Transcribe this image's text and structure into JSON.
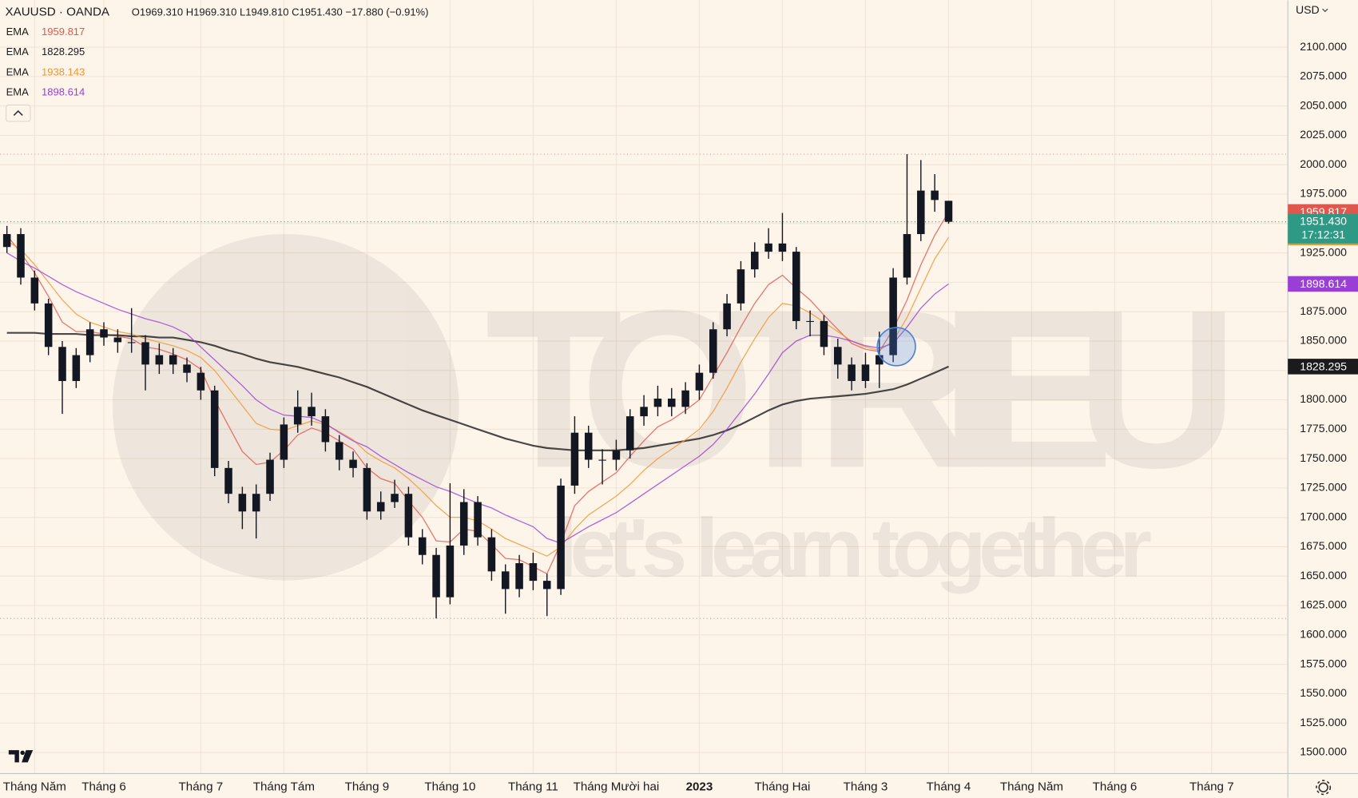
{
  "chart_data": {
    "type": "candlestick",
    "header": {
      "symbol": "XAUUSD · OANDA",
      "ohlc": [
        {
          "k": "O",
          "v": "1969.310"
        },
        {
          "k": "H",
          "v": "1969.310"
        },
        {
          "k": "L",
          "v": "1949.810"
        },
        {
          "k": "C",
          "v": "1951.430"
        }
      ],
      "change": "−17.880 (−0.91%)"
    },
    "currency": "USD",
    "watermark": {
      "brand": "TOTRIEU",
      "slogan": "let's learn together"
    },
    "price_tag": {
      "price": "1951.430",
      "countdown": "17:12:31"
    },
    "candle_color": "#131722",
    "last_color": "#2e9a86",
    "grid": true,
    "ylim": [
      1482,
      2140
    ],
    "yticks": [
      {
        "value": 1500,
        "label": "1500.000"
      },
      {
        "value": 1525,
        "label": "1525.000"
      },
      {
        "value": 1550,
        "label": "1550.000"
      },
      {
        "value": 1575,
        "label": "1575.000"
      },
      {
        "value": 1600,
        "label": "1600.000"
      },
      {
        "value": 1625,
        "label": "1625.000"
      },
      {
        "value": 1650,
        "label": "1650.000"
      },
      {
        "value": 1675,
        "label": "1675.000"
      },
      {
        "value": 1700,
        "label": "1700.000"
      },
      {
        "value": 1725,
        "label": "1725.000"
      },
      {
        "value": 1750,
        "label": "1750.000"
      },
      {
        "value": 1775,
        "label": "1775.000"
      },
      {
        "value": 1800,
        "label": "1800.000"
      },
      {
        "value": 1825,
        "label": "1825.000"
      },
      {
        "value": 1850,
        "label": "1850.000"
      },
      {
        "value": 1875,
        "label": "1875.000"
      },
      {
        "value": 1900,
        "label": "1900.000"
      },
      {
        "value": 1925,
        "label": "1925.000"
      },
      {
        "value": 1950,
        "label": "1950.000"
      },
      {
        "value": 1975,
        "label": "1975.000"
      },
      {
        "value": 2000,
        "label": "2000.000"
      },
      {
        "value": 2025,
        "label": "2025.000"
      },
      {
        "value": 2050,
        "label": "2050.000"
      },
      {
        "value": 2075,
        "label": "2075.000"
      },
      {
        "value": 2100,
        "label": "2100.000"
      }
    ],
    "categories": [
      null,
      null,
      "Tháng Năm",
      null,
      null,
      null,
      null,
      "Tháng 6",
      null,
      null,
      null,
      null,
      null,
      null,
      "Tháng 7",
      null,
      null,
      null,
      null,
      null,
      "Tháng Tám",
      null,
      null,
      null,
      null,
      null,
      "Tháng 9",
      null,
      null,
      null,
      null,
      null,
      "Tháng 10",
      null,
      null,
      null,
      null,
      null,
      "Tháng 11",
      null,
      null,
      null,
      null,
      null,
      "Tháng Mười hai",
      null,
      null,
      null,
      null,
      null,
      "2023",
      null,
      null,
      null,
      null,
      null,
      "Tháng Hai",
      null,
      null,
      null,
      null,
      null,
      "Tháng 3",
      null,
      null,
      null,
      null,
      null,
      "Tháng 4",
      null,
      null,
      null,
      null,
      null,
      "Tháng Năm",
      null,
      null,
      null,
      null,
      null,
      "Tháng 6",
      null,
      null,
      null,
      null,
      null,
      null,
      "Tháng 7",
      null,
      null,
      null,
      null,
      null
    ],
    "open": [
      1930,
      1941,
      1904,
      1882,
      1845,
      1816,
      1838,
      1860,
      1853,
      1849,
      1849,
      1830,
      1838,
      1830,
      1823,
      1808,
      1742,
      1720,
      1705,
      1720,
      1749,
      1779,
      1794,
      1786,
      1764,
      1749,
      1742,
      1705,
      1713,
      1720,
      1683,
      1668,
      1632,
      1676,
      1713,
      1683,
      1654,
      1639,
      1661,
      1646,
      1639,
      1727,
      1772,
      1749,
      1749,
      1757,
      1786,
      1794,
      1801,
      1794,
      1808,
      1823,
      1860,
      1882,
      1911,
      1926,
      1933,
      1926,
      1867,
      1867,
      1845,
      1830,
      1816,
      1830,
      1838,
      1904,
      1941,
      1978,
      1969.31,
      null,
      null,
      null,
      null,
      null,
      null,
      null,
      null,
      null,
      null,
      null,
      null,
      null,
      null,
      null,
      null,
      null,
      null,
      null,
      null,
      null,
      null,
      null,
      null
    ],
    "high": [
      1948,
      1946,
      1910,
      1886,
      1850,
      1844,
      1866,
      1866,
      1860,
      1878,
      1855,
      1848,
      1844,
      1836,
      1828,
      1812,
      1748,
      1726,
      1728,
      1755,
      1785,
      1808,
      1806,
      1792,
      1770,
      1756,
      1746,
      1722,
      1732,
      1726,
      1690,
      1674,
      1729,
      1724,
      1718,
      1690,
      1660,
      1668,
      1670,
      1652,
      1733,
      1786,
      1778,
      1758,
      1766,
      1792,
      1804,
      1812,
      1810,
      1815,
      1830,
      1866,
      1890,
      1918,
      1934,
      1946,
      1959,
      1930,
      1876,
      1872,
      1852,
      1836,
      1840,
      1858,
      1912,
      2009,
      2004,
      1992,
      1969.31,
      null,
      null,
      null,
      null,
      null,
      null,
      null,
      null,
      null,
      null,
      null,
      null,
      null,
      null,
      null,
      null,
      null,
      null,
      null,
      null,
      null,
      null,
      null,
      null
    ],
    "low": [
      1925,
      1898,
      1876,
      1838,
      1788,
      1810,
      1832,
      1846,
      1840,
      1840,
      1808,
      1822,
      1822,
      1815,
      1800,
      1735,
      1712,
      1690,
      1682,
      1714,
      1742,
      1772,
      1778,
      1756,
      1740,
      1734,
      1698,
      1698,
      1708,
      1676,
      1660,
      1614,
      1626,
      1668,
      1676,
      1646,
      1618,
      1632,
      1638,
      1616,
      1634,
      1720,
      1742,
      1728,
      1740,
      1750,
      1778,
      1786,
      1786,
      1788,
      1800,
      1818,
      1854,
      1876,
      1904,
      1920,
      1918,
      1860,
      1854,
      1838,
      1818,
      1808,
      1810,
      1810,
      1832,
      1898,
      1935,
      1960,
      1949.81,
      null,
      null,
      null,
      null,
      null,
      null,
      null,
      null,
      null,
      null,
      null,
      null,
      null,
      null,
      null,
      null,
      null,
      null,
      null,
      null,
      null,
      null,
      null,
      null
    ],
    "close": [
      1941,
      1904,
      1882,
      1845,
      1816,
      1838,
      1860,
      1853,
      1849,
      1849,
      1830,
      1838,
      1830,
      1823,
      1808,
      1742,
      1720,
      1705,
      1720,
      1749,
      1779,
      1794,
      1786,
      1764,
      1749,
      1742,
      1705,
      1713,
      1720,
      1683,
      1668,
      1632,
      1676,
      1713,
      1683,
      1654,
      1639,
      1661,
      1646,
      1639,
      1727,
      1772,
      1749,
      1749,
      1757,
      1786,
      1794,
      1801,
      1794,
      1808,
      1823,
      1860,
      1882,
      1911,
      1926,
      1933,
      1926,
      1867,
      1867,
      1845,
      1830,
      1816,
      1830,
      1838,
      1904,
      1941,
      1978,
      1970,
      1951.43,
      null,
      null,
      null,
      null,
      null,
      null,
      null,
      null,
      null,
      null,
      null,
      null,
      null,
      null,
      null,
      null,
      null,
      null,
      null,
      null,
      null,
      null,
      null,
      null
    ],
    "series": [
      {
        "name": "EMA",
        "color": "#e0574c",
        "last_label": "1959.817",
        "values": [
          1940,
          1925,
          1908,
          1888,
          1866,
          1858,
          1858,
          1856,
          1854,
          1852,
          1845,
          1843,
          1839,
          1834,
          1826,
          1800,
          1778,
          1756,
          1745,
          1747,
          1757,
          1770,
          1776,
          1772,
          1765,
          1758,
          1742,
          1733,
          1729,
          1714,
          1700,
          1680,
          1679,
          1690,
          1688,
          1677,
          1665,
          1664,
          1658,
          1652,
          1678,
          1710,
          1722,
          1730,
          1738,
          1752,
          1765,
          1777,
          1783,
          1791,
          1800,
          1820,
          1840,
          1862,
          1882,
          1898,
          1906,
          1895,
          1885,
          1872,
          1860,
          1848,
          1843,
          1841,
          1860,
          1885,
          1915,
          1940,
          1959.817,
          null,
          null,
          null,
          null,
          null,
          null,
          null,
          null,
          null,
          null,
          null,
          null,
          null,
          null,
          null,
          null,
          null,
          null,
          null,
          null,
          null,
          null,
          null,
          null
        ]
      },
      {
        "name": "EMA",
        "color": "#1b1b1b",
        "last_label": "1828.295",
        "values": [
          1857,
          1857,
          1857,
          1856,
          1856,
          1856,
          1855,
          1855,
          1855,
          1854,
          1854,
          1853,
          1853,
          1851,
          1849,
          1846,
          1842,
          1839,
          1835,
          1832,
          1830,
          1828,
          1825,
          1822,
          1819,
          1815,
          1811,
          1806,
          1801,
          1796,
          1791,
          1787,
          1783,
          1779,
          1775,
          1771,
          1767,
          1764,
          1761,
          1759,
          1758,
          1757,
          1757,
          1757,
          1757,
          1758,
          1759,
          1761,
          1763,
          1765,
          1767,
          1770,
          1774,
          1779,
          1785,
          1791,
          1796,
          1799,
          1801,
          1802,
          1803,
          1804,
          1805,
          1807,
          1809,
          1813,
          1818,
          1823,
          1828.295,
          null,
          null,
          null,
          null,
          null,
          null,
          null,
          null,
          null,
          null,
          null,
          null,
          null,
          null,
          null,
          null,
          null,
          null,
          null,
          null,
          null,
          null,
          null,
          null
        ]
      },
      {
        "name": "EMA",
        "color": "#f0962f",
        "last_label": "1938.143",
        "values": [
          1935,
          1928,
          1915,
          1900,
          1885,
          1873,
          1866,
          1862,
          1858,
          1856,
          1852,
          1849,
          1846,
          1842,
          1836,
          1825,
          1810,
          1795,
          1780,
          1775,
          1774,
          1778,
          1782,
          1779,
          1773,
          1766,
          1755,
          1748,
          1742,
          1733,
          1722,
          1710,
          1700,
          1700,
          1697,
          1690,
          1682,
          1677,
          1672,
          1667,
          1675,
          1690,
          1702,
          1710,
          1718,
          1728,
          1740,
          1750,
          1758,
          1766,
          1775,
          1790,
          1810,
          1832,
          1852,
          1870,
          1882,
          1880,
          1874,
          1866,
          1858,
          1850,
          1845,
          1842,
          1850,
          1870,
          1895,
          1920,
          1938.143,
          null,
          null,
          null,
          null,
          null,
          null,
          null,
          null,
          null,
          null,
          null,
          null,
          null,
          null,
          null,
          null,
          null,
          null,
          null,
          null,
          null,
          null,
          null,
          null
        ]
      },
      {
        "name": "EMA",
        "color": "#9a3fd6",
        "last_label": "1898.614",
        "values": [
          1925,
          1918,
          1912,
          1905,
          1898,
          1892,
          1887,
          1882,
          1877,
          1873,
          1869,
          1866,
          1862,
          1856,
          1845,
          1834,
          1823,
          1812,
          1800,
          1792,
          1787,
          1786,
          1785,
          1780,
          1772,
          1765,
          1760,
          1752,
          1745,
          1738,
          1732,
          1726,
          1722,
          1717,
          1712,
          1708,
          1702,
          1697,
          1692,
          1682,
          1678,
          1685,
          1692,
          1698,
          1704,
          1712,
          1720,
          1728,
          1736,
          1744,
          1752,
          1762,
          1775,
          1790,
          1805,
          1822,
          1840,
          1850,
          1855,
          1855,
          1853,
          1850,
          1846,
          1844,
          1848,
          1862,
          1878,
          1890,
          1898.614,
          null,
          null,
          null,
          null,
          null,
          null,
          null,
          null,
          null,
          null,
          null,
          null,
          null,
          null,
          null,
          null,
          null,
          null,
          null,
          null,
          null,
          null,
          null,
          null
        ]
      }
    ]
  }
}
